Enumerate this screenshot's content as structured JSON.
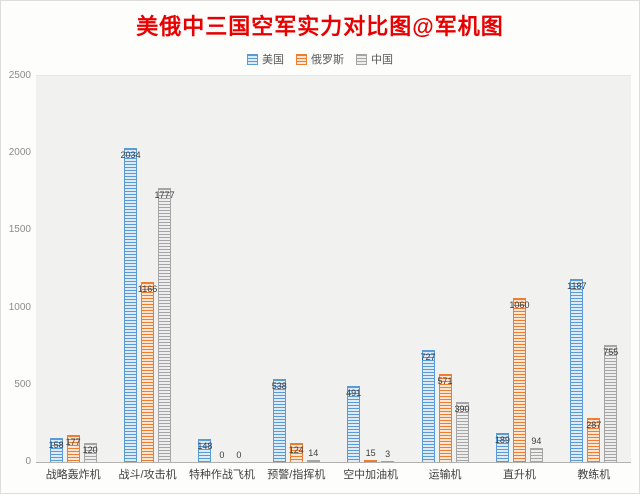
{
  "title": "美俄中三国空军实力对比图@军机图",
  "title_color": "#e60000",
  "chart_data": {
    "type": "bar",
    "title": "美俄中三国空军实力对比图@军机图",
    "categories": [
      "战略轰炸机",
      "战斗/攻击机",
      "特种作战飞机",
      "预警/指挥机",
      "空中加油机",
      "运输机",
      "直升机",
      "教练机"
    ],
    "series": [
      {
        "name": "美国",
        "color": "#5B9BD5",
        "light": "#DEEAF6",
        "values": [
          158,
          2034,
          148,
          538,
          491,
          727,
          189,
          1187
        ]
      },
      {
        "name": "俄罗斯",
        "color": "#ED7D31",
        "light": "#FBE5D5",
        "values": [
          177,
          1166,
          0,
          124,
          15,
          571,
          1060,
          287
        ]
      },
      {
        "name": "中国",
        "color": "#A5A5A5",
        "light": "#EDEDED",
        "values": [
          120,
          1777,
          0,
          14,
          3,
          390,
          94,
          755
        ]
      }
    ],
    "ylim": [
      0,
      2500
    ],
    "yticks": [
      0,
      500,
      1000,
      1500,
      2000,
      2500
    ],
    "xlabel": "",
    "ylabel": "",
    "grid": false,
    "legend_position": "top",
    "data_labels": true,
    "plot_background": "#f1f1ef"
  }
}
